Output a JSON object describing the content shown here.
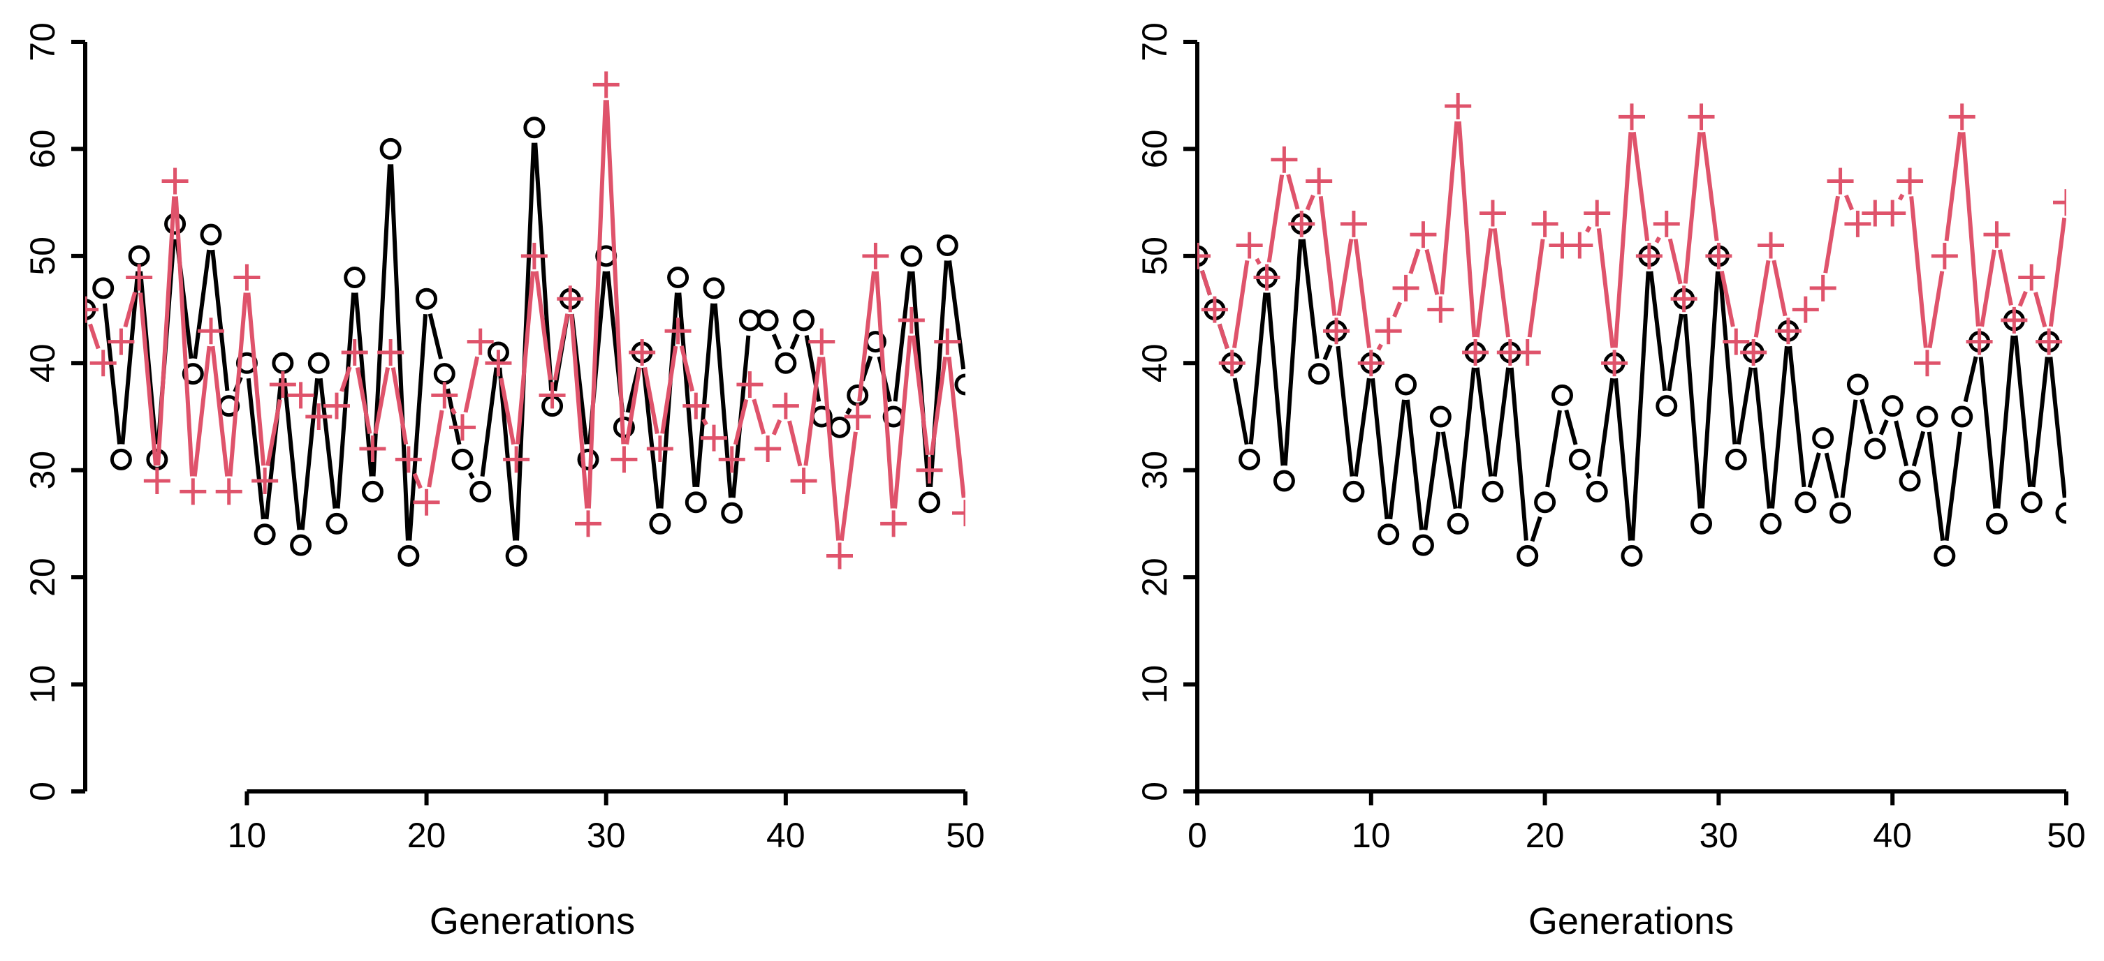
{
  "colors": {
    "black_series": "#000000",
    "red_series": "#DF536B",
    "axis": "#000000",
    "background": "#FFFFFF"
  },
  "chart_data": [
    {
      "type": "line",
      "panel": "left",
      "title": "",
      "xlabel": "Generations",
      "ylabel": "",
      "xlim": [
        1,
        50
      ],
      "ylim": [
        0,
        70
      ],
      "xticks": [
        10,
        20,
        30,
        40,
        50
      ],
      "yticks": [
        0,
        10,
        20,
        30,
        40,
        50,
        60,
        70
      ],
      "grid": false,
      "legend": "none",
      "series": [
        {
          "name": "black-circles",
          "marker": "circle",
          "color": "#000000",
          "x": [
            1,
            2,
            3,
            4,
            5,
            6,
            7,
            8,
            9,
            10,
            11,
            12,
            13,
            14,
            15,
            16,
            17,
            18,
            19,
            20,
            21,
            22,
            23,
            24,
            25,
            26,
            27,
            28,
            29,
            30,
            31,
            32,
            33,
            34,
            35,
            36,
            37,
            38,
            39,
            40,
            41,
            42,
            43,
            44,
            45,
            46,
            47,
            48,
            49,
            50
          ],
          "values": [
            45,
            47,
            31,
            50,
            31,
            53,
            39,
            52,
            36,
            40,
            24,
            40,
            23,
            40,
            25,
            48,
            28,
            60,
            22,
            46,
            39,
            31,
            28,
            41,
            22,
            62,
            36,
            46,
            31,
            50,
            34,
            41,
            25,
            48,
            27,
            47,
            26,
            44,
            44,
            40,
            44,
            35,
            34,
            37,
            42,
            35,
            50,
            27,
            51,
            38
          ]
        },
        {
          "name": "red-crosses",
          "marker": "plus",
          "color": "#DF536B",
          "x": [
            1,
            2,
            3,
            4,
            5,
            6,
            7,
            8,
            9,
            10,
            11,
            12,
            13,
            14,
            15,
            16,
            17,
            18,
            19,
            20,
            21,
            22,
            23,
            24,
            25,
            26,
            27,
            28,
            29,
            30,
            31,
            32,
            33,
            34,
            35,
            36,
            37,
            38,
            39,
            40,
            41,
            42,
            43,
            44,
            45,
            46,
            47,
            48,
            49,
            50
          ],
          "values": [
            45,
            40,
            42,
            48,
            29,
            57,
            28,
            43,
            28,
            48,
            29,
            38,
            37,
            35,
            36,
            41,
            32,
            41,
            31,
            27,
            37,
            34,
            42,
            40,
            31,
            50,
            37,
            46,
            25,
            66,
            31,
            41,
            32,
            43,
            36,
            33,
            31,
            38,
            32,
            36,
            29,
            42,
            22,
            35,
            50,
            25,
            44,
            30,
            42,
            26
          ]
        }
      ]
    },
    {
      "type": "line",
      "panel": "right",
      "title": "",
      "xlabel": "Generations",
      "ylabel": "",
      "xlim": [
        0,
        50
      ],
      "ylim": [
        0,
        70
      ],
      "xticks": [
        0,
        10,
        20,
        30,
        40,
        50
      ],
      "yticks": [
        0,
        10,
        20,
        30,
        40,
        50,
        60,
        70
      ],
      "grid": false,
      "legend": "none",
      "series": [
        {
          "name": "black-circles",
          "marker": "circle",
          "color": "#000000",
          "x": [
            0,
            1,
            2,
            3,
            4,
            5,
            6,
            7,
            8,
            9,
            10,
            11,
            12,
            13,
            14,
            15,
            16,
            17,
            18,
            19,
            20,
            21,
            22,
            23,
            24,
            25,
            26,
            27,
            28,
            29,
            30,
            31,
            32,
            33,
            34,
            35,
            36,
            37,
            38,
            39,
            40,
            41,
            42,
            43,
            44,
            45,
            46,
            47,
            48,
            49,
            50
          ],
          "values": [
            50,
            45,
            40,
            31,
            48,
            29,
            53,
            39,
            43,
            28,
            40,
            24,
            38,
            23,
            35,
            25,
            41,
            28,
            41,
            22,
            27,
            37,
            31,
            28,
            40,
            22,
            50,
            36,
            46,
            25,
            50,
            31,
            41,
            25,
            43,
            27,
            33,
            26,
            38,
            32,
            36,
            29,
            35,
            22,
            35,
            42,
            25,
            44,
            27,
            42,
            26
          ]
        },
        {
          "name": "red-crosses",
          "marker": "plus",
          "color": "#DF536B",
          "x": [
            0,
            1,
            2,
            3,
            4,
            5,
            6,
            7,
            8,
            9,
            10,
            11,
            12,
            13,
            14,
            15,
            16,
            17,
            18,
            19,
            20,
            21,
            22,
            23,
            24,
            25,
            26,
            27,
            28,
            29,
            30,
            31,
            32,
            33,
            34,
            35,
            36,
            37,
            38,
            39,
            40,
            41,
            42,
            43,
            44,
            45,
            46,
            47,
            48,
            49,
            50
          ],
          "values": [
            50,
            45,
            40,
            51,
            48,
            59,
            53,
            57,
            43,
            53,
            40,
            43,
            47,
            52,
            45,
            64,
            41,
            54,
            41,
            41,
            53,
            51,
            51,
            54,
            40,
            63,
            50,
            53,
            46,
            63,
            50,
            42,
            41,
            51,
            43,
            45,
            47,
            57,
            53,
            54,
            54,
            57,
            40,
            50,
            63,
            42,
            52,
            44,
            48,
            42,
            55
          ]
        }
      ]
    }
  ]
}
